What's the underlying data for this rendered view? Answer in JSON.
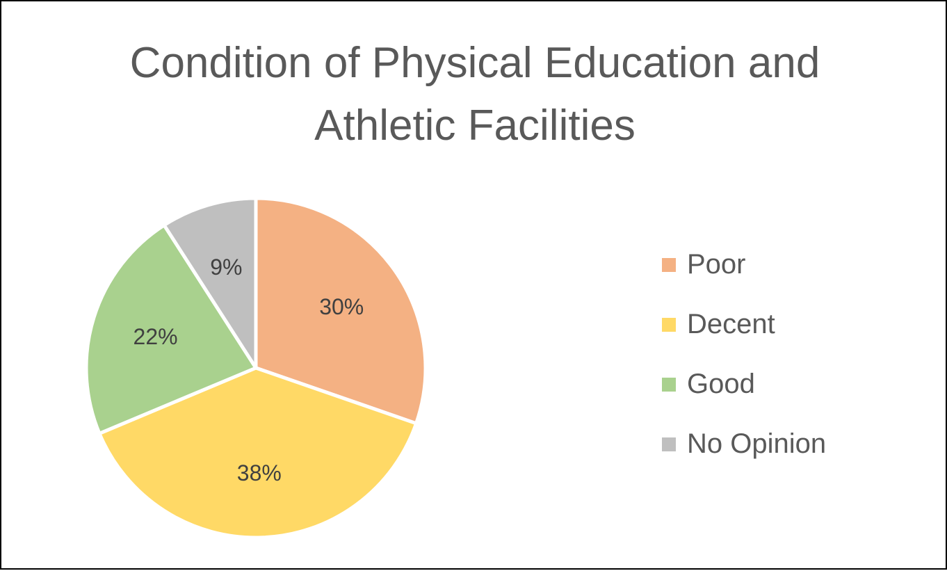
{
  "chart_data": {
    "type": "pie",
    "title": "Condition of Physical Education and Athletic Facilities",
    "title_lines": [
      "Condition of Physical Education and",
      "Athletic Facilities"
    ],
    "categories": [
      "Poor",
      "Decent",
      "Good",
      "No Opinion"
    ],
    "values": [
      30,
      38,
      22,
      9
    ],
    "data_labels": [
      "30%",
      "38%",
      "22%",
      "9%"
    ],
    "colors": [
      "#F4B183",
      "#FFD966",
      "#A9D18E",
      "#BFBFBF"
    ],
    "legend_position": "right"
  }
}
